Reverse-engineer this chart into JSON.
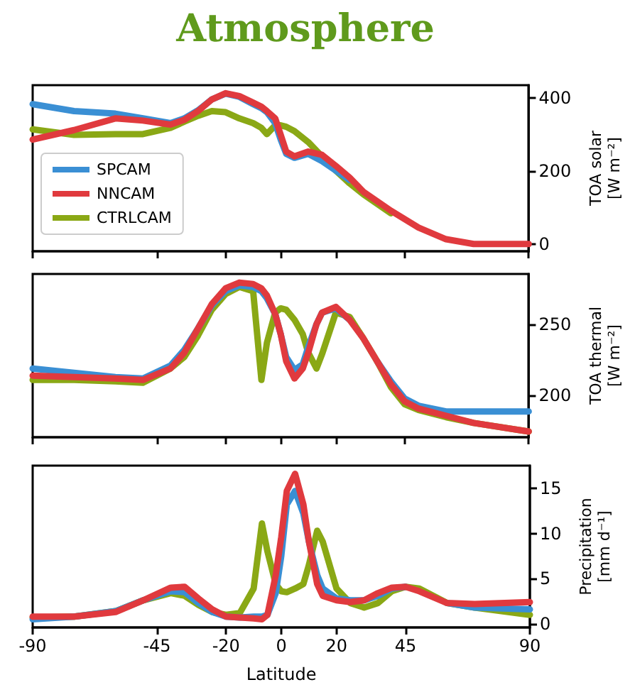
{
  "chart_data": [
    {
      "type": "line",
      "title": "Atmosphere",
      "ylabel": "TOA solar\n[W m⁻²]",
      "xlim": [
        -90,
        90
      ],
      "xticks": [
        -90,
        -45,
        -20,
        0,
        20,
        45,
        90
      ],
      "ylim": [
        -20,
        435
      ],
      "yticks": [
        0,
        200,
        400
      ],
      "tick_labels": "y",
      "legend": "bottom left",
      "marker": "none",
      "line_style": "solid",
      "x": [
        -90,
        -75,
        -60,
        -50,
        -40,
        -35,
        -30,
        -25,
        -20,
        -15,
        -10,
        -7,
        -5,
        -2,
        0,
        2,
        5,
        10,
        15,
        20,
        25,
        30,
        40,
        50,
        60,
        70,
        90
      ],
      "series": [
        {
          "name": "SPCAM",
          "color": "#3a8fd4",
          "values": [
            383,
            364,
            357,
            344,
            331,
            344,
            366,
            396,
            412,
            403,
            383,
            372,
            361,
            331,
            286,
            247,
            236,
            247,
            227,
            201,
            175,
            null,
            null,
            null,
            null,
            null,
            null
          ]
        },
        {
          "name": "NNCAM",
          "color": "#e03a3e",
          "values": [
            286,
            312,
            344,
            338,
            327,
            340,
            364,
            396,
            413,
            405,
            387,
            376,
            364,
            344,
            299,
            253,
            240,
            253,
            244,
            214,
            182,
            143,
            91,
            45,
            13,
            0,
            0
          ]
        },
        {
          "name": "CTRLCAM",
          "color": "#8aa815",
          "values": [
            314,
            299,
            301,
            301,
            318,
            335,
            351,
            364,
            361,
            344,
            331,
            318,
            301,
            325,
            325,
            321,
            309,
            279,
            240,
            201,
            166,
            136,
            84,
            null,
            null,
            null,
            null
          ]
        }
      ]
    },
    {
      "type": "line",
      "ylabel": "TOA thermal\n[W m⁻²]",
      "xlim": [
        -90,
        90
      ],
      "xticks": [
        -90,
        -45,
        -20,
        0,
        20,
        45,
        90
      ],
      "ylim": [
        171,
        285
      ],
      "yticks": [
        200,
        250
      ],
      "tick_labels": "y",
      "marker": "none",
      "line_style": "solid",
      "x": [
        -90,
        -75,
        -60,
        -50,
        -40,
        -35,
        -30,
        -25,
        -20,
        -15,
        -10,
        -7,
        -5,
        -2,
        0,
        2,
        5,
        8,
        10,
        13,
        15,
        20,
        25,
        30,
        35,
        40,
        45,
        50,
        60,
        70,
        90
      ],
      "series": [
        {
          "color": "#3a8fd4",
          "values": [
            219,
            216,
            213,
            212,
            221,
            232,
            247,
            263,
            273,
            277,
            276,
            273,
            268,
            257,
            243,
            227,
            218,
            222,
            234,
            250,
            258,
            261,
            253,
            null,
            224,
            210,
            198,
            193,
            189,
            189,
            189
          ]
        },
        {
          "color": "#e03a3e",
          "values": [
            214,
            213,
            212,
            211,
            219,
            230,
            247,
            264,
            275,
            279,
            278,
            275,
            270,
            257,
            243,
            224,
            212,
            219,
            230,
            250,
            258,
            262,
            253,
            240,
            224,
            208,
            196,
            191,
            186,
            181,
            175
          ]
        },
        {
          "color": "#8aa815",
          "values": [
            211,
            211,
            210,
            209,
            219,
            227,
            242,
            260,
            271,
            276,
            273,
            211,
            237,
            258,
            261,
            260,
            253,
            243,
            230,
            219,
            229,
            258,
            255,
            240,
            224,
            206,
            194,
            190,
            185,
            181,
            175
          ]
        }
      ]
    },
    {
      "type": "line",
      "xlabel": "Latitude",
      "ylabel": "Precipitation\n[mm d⁻¹]",
      "xlim": [
        -90,
        90
      ],
      "xticks": [
        -90,
        -45,
        -20,
        0,
        20,
        45,
        90
      ],
      "ylim": [
        -0.4,
        17.5
      ],
      "yticks": [
        0,
        5,
        10,
        15
      ],
      "marker": "none",
      "line_style": "solid",
      "x": [
        -90,
        -75,
        -60,
        -50,
        -40,
        -35,
        -30,
        -25,
        -20,
        -15,
        -10,
        -7,
        -5,
        -2,
        0,
        2,
        5,
        8,
        10,
        13,
        15,
        20,
        25,
        30,
        35,
        40,
        45,
        50,
        60,
        70,
        90
      ],
      "series": [
        {
          "color": "#3a8fd4",
          "values": [
            0.5,
            0.8,
            1.4,
            2.6,
            3.6,
            3.5,
            2.3,
            1.3,
            0.8,
            0.7,
            0.8,
            0.8,
            1.0,
            3.4,
            7.5,
            13.2,
            14.7,
            12.2,
            9.1,
            5.4,
            3.9,
            2.8,
            2.6,
            2.6,
            3.1,
            3.9,
            4.1,
            null,
            2.3,
            1.8,
            1.6
          ]
        },
        {
          "color": "#e03a3e",
          "values": [
            0.8,
            0.8,
            1.3,
            2.6,
            4.0,
            4.1,
            2.8,
            1.6,
            0.8,
            0.7,
            0.6,
            0.5,
            1.0,
            5.4,
            9.6,
            14.7,
            16.6,
            13.2,
            9.1,
            4.4,
            3.1,
            2.6,
            2.4,
            2.6,
            3.4,
            4.0,
            4.1,
            3.6,
            2.3,
            2.2,
            2.4
          ]
        },
        {
          "color": "#8aa815",
          "values": [
            0.7,
            0.8,
            1.4,
            2.6,
            3.4,
            3.1,
            2.1,
            1.3,
            1.0,
            1.2,
            3.9,
            11.1,
            8.0,
            4.4,
            3.6,
            3.5,
            3.9,
            4.4,
            6.5,
            10.3,
            9.1,
            3.9,
            2.3,
            1.8,
            2.3,
            3.6,
            4.1,
            3.9,
            2.3,
            1.8,
            1.0
          ]
        }
      ]
    }
  ]
}
